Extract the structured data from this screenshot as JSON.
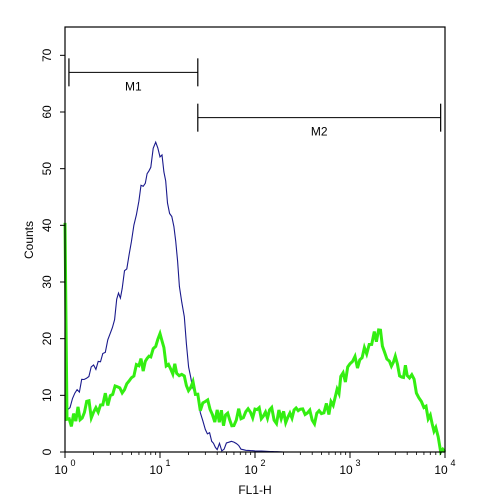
{
  "chart_data": {
    "type": "line",
    "title": "",
    "xlabel": "FL1-H",
    "ylabel": "Counts",
    "x_scale": "log10",
    "xlim": [
      1,
      10000
    ],
    "ylim": [
      0,
      75
    ],
    "grid": false,
    "legend": "none",
    "x_ticks": [
      {
        "value": 1,
        "base": "10",
        "exp": "0"
      },
      {
        "value": 10,
        "base": "10",
        "exp": "1"
      },
      {
        "value": 100,
        "base": "10",
        "exp": "2"
      },
      {
        "value": 1000,
        "base": "10",
        "exp": "3"
      },
      {
        "value": 10000,
        "base": "10",
        "exp": "4"
      }
    ],
    "y_ticks": [
      0,
      10,
      20,
      30,
      40,
      50,
      60,
      70
    ],
    "gates": [
      {
        "label": "M1",
        "start": 1.1,
        "end": 25,
        "y": 67
      },
      {
        "label": "M2",
        "start": 25,
        "end": 9000,
        "y": 59
      }
    ],
    "series": [
      {
        "color": "#1a1a8c",
        "points": [
          [
            1.0,
            6
          ],
          [
            1.2,
            10
          ],
          [
            1.5,
            12
          ],
          [
            2,
            15
          ],
          [
            2.5,
            17
          ],
          [
            3,
            21
          ],
          [
            3.5,
            26
          ],
          [
            4,
            29
          ],
          [
            5,
            37
          ],
          [
            6,
            45
          ],
          [
            7,
            48
          ],
          [
            8,
            51
          ],
          [
            9,
            55
          ],
          [
            10,
            53
          ],
          [
            11,
            50
          ],
          [
            12,
            44
          ],
          [
            14,
            40
          ],
          [
            16,
            30
          ],
          [
            18,
            24
          ],
          [
            20,
            16
          ],
          [
            22,
            11
          ],
          [
            25,
            9
          ],
          [
            30,
            4
          ],
          [
            35,
            2
          ],
          [
            40,
            1
          ],
          [
            50,
            1
          ],
          [
            60,
            0.8
          ],
          [
            80,
            0.3
          ],
          [
            100,
            0.2
          ],
          [
            200,
            0
          ],
          [
            10000,
            0
          ]
        ]
      },
      {
        "color": "#33ee11",
        "points": [
          [
            1.0,
            42
          ],
          [
            1.05,
            6
          ],
          [
            1.3,
            6
          ],
          [
            1.6,
            8
          ],
          [
            2,
            7
          ],
          [
            2.5,
            9
          ],
          [
            3,
            10
          ],
          [
            4,
            12
          ],
          [
            5,
            14
          ],
          [
            6,
            15
          ],
          [
            7,
            16
          ],
          [
            8,
            17
          ],
          [
            9,
            18
          ],
          [
            10,
            20
          ],
          [
            11,
            17
          ],
          [
            13,
            15
          ],
          [
            15,
            14
          ],
          [
            18,
            13
          ],
          [
            21,
            12
          ],
          [
            25,
            9
          ],
          [
            30,
            8
          ],
          [
            40,
            6
          ],
          [
            60,
            6
          ],
          [
            80,
            7
          ],
          [
            100,
            6
          ],
          [
            150,
            7
          ],
          [
            200,
            6
          ],
          [
            300,
            7
          ],
          [
            400,
            6
          ],
          [
            500,
            7
          ],
          [
            600,
            8
          ],
          [
            700,
            10
          ],
          [
            800,
            12
          ],
          [
            1000,
            14
          ],
          [
            1200,
            16
          ],
          [
            1500,
            18
          ],
          [
            1800,
            20
          ],
          [
            2000,
            22
          ],
          [
            2300,
            19
          ],
          [
            2600,
            17
          ],
          [
            3000,
            16
          ],
          [
            3500,
            14
          ],
          [
            4000,
            15
          ],
          [
            5000,
            12
          ],
          [
            6000,
            9
          ],
          [
            7000,
            5
          ],
          [
            8000,
            3
          ],
          [
            9000,
            1
          ],
          [
            10000,
            0
          ]
        ]
      }
    ]
  }
}
